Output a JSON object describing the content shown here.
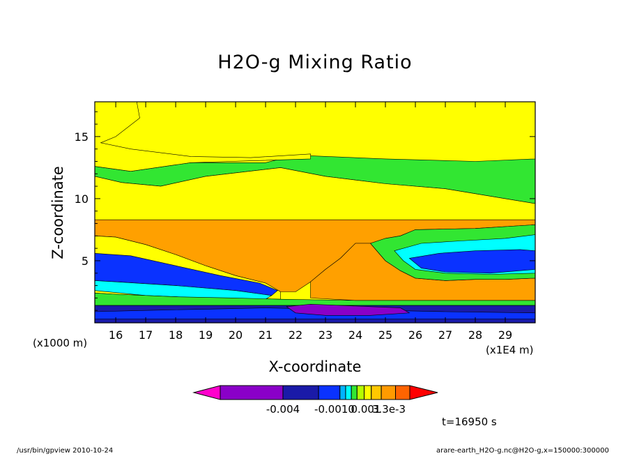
{
  "chart_data": {
    "type": "heatmap",
    "title": "H2O-g Mixing Ratio",
    "xlabel": "X-coordinate",
    "ylabel": "Z-coordinate",
    "x_unit_note": "(x1E4 m)",
    "y_unit_note": "(x1000 m)",
    "xlim": [
      15.3,
      30.0
    ],
    "ylim": [
      0.0,
      17.8
    ],
    "x_ticks": [
      16,
      17,
      18,
      19,
      20,
      21,
      22,
      23,
      24,
      25,
      26,
      27,
      28,
      29
    ],
    "y_ticks": [
      5,
      10,
      15
    ],
    "colorbar": {
      "labels": [
        "-0.004",
        "-0.0010",
        "0.001",
        "3.3e-3"
      ],
      "colors": [
        "#ff00cc",
        "#8a00c8",
        "#1a1aa8",
        "#0a32ff",
        "#00b4ff",
        "#00ffff",
        "#32e632",
        "#b4ff00",
        "#ffff00",
        "#ffc800",
        "#ff9a00",
        "#ff6400",
        "#ff0000"
      ]
    },
    "time_label": "t=16950 s",
    "regions": [
      {
        "name": "upper-green",
        "color": "#32e632",
        "polygon": [
          [
            15.3,
            17.8
          ],
          [
            30,
            17.8
          ],
          [
            30,
            9.6
          ],
          [
            29,
            10.0
          ],
          [
            27,
            10.8
          ],
          [
            25,
            11.2
          ],
          [
            23,
            11.8
          ],
          [
            21.5,
            12.5
          ],
          [
            19,
            11.8
          ],
          [
            17.5,
            11.0
          ],
          [
            16.2,
            11.3
          ],
          [
            15.3,
            11.8
          ],
          [
            15.3,
            12.6
          ],
          [
            16.5,
            12.2
          ],
          [
            18.5,
            12.9
          ],
          [
            21,
            12.9
          ],
          [
            22,
            13.5
          ],
          [
            25,
            13.2
          ],
          [
            28,
            13.0
          ],
          [
            30,
            13.2
          ],
          [
            30,
            17.8
          ]
        ]
      },
      {
        "name": "upper-left-yellow",
        "color": "#ffff00",
        "polygon": [
          [
            15.3,
            17.8
          ],
          [
            16.7,
            17.8
          ],
          [
            16.8,
            16.5
          ],
          [
            16.0,
            15.0
          ],
          [
            15.5,
            14.5
          ],
          [
            16.5,
            14.0
          ],
          [
            18.5,
            13.4
          ],
          [
            20.5,
            13.3
          ],
          [
            22.5,
            13.6
          ],
          [
            22.5,
            13.2
          ],
          [
            18.5,
            12.9
          ],
          [
            16.5,
            12.2
          ],
          [
            15.3,
            12.6
          ]
        ]
      },
      {
        "name": "mid-yellow",
        "color": "#ffff00",
        "polygon": [
          [
            15.3,
            11.8
          ],
          [
            16.2,
            11.3
          ],
          [
            17.5,
            11.0
          ],
          [
            19,
            11.8
          ],
          [
            21.5,
            12.5
          ],
          [
            23,
            11.8
          ],
          [
            25,
            11.2
          ],
          [
            27,
            10.8
          ],
          [
            29,
            10.0
          ],
          [
            30,
            9.6
          ],
          [
            30,
            7.9
          ],
          [
            28,
            7.6
          ],
          [
            26,
            7.5
          ],
          [
            24,
            7.4
          ],
          [
            22,
            7.4
          ],
          [
            20,
            7.6
          ],
          [
            18,
            7.9
          ],
          [
            16,
            8.2
          ],
          [
            15.3,
            8.3
          ]
        ]
      },
      {
        "name": "orange-band",
        "color": "#ffa000",
        "polygon": [
          [
            15.3,
            8.3
          ],
          [
            30,
            8.3
          ],
          [
            30,
            7.9
          ],
          [
            28,
            7.6
          ],
          [
            26,
            7.5
          ],
          [
            25.5,
            7.0
          ],
          [
            25,
            6.8
          ],
          [
            24.5,
            6.4
          ],
          [
            24,
            6.4
          ],
          [
            23.5,
            5.2
          ],
          [
            23,
            4.3
          ],
          [
            22.5,
            3.3
          ],
          [
            22,
            2.5
          ],
          [
            21.5,
            2.5
          ],
          [
            21,
            3.2
          ],
          [
            20,
            3.8
          ],
          [
            19,
            4.6
          ],
          [
            18,
            5.5
          ],
          [
            17,
            6.3
          ],
          [
            16,
            6.9
          ],
          [
            15.3,
            7.0
          ]
        ]
      },
      {
        "name": "yellow-lower",
        "color": "#ffff00",
        "polygon": [
          [
            15.3,
            7.0
          ],
          [
            16,
            6.9
          ],
          [
            17,
            6.3
          ],
          [
            18,
            5.5
          ],
          [
            19,
            4.6
          ],
          [
            20,
            3.8
          ],
          [
            21,
            3.2
          ],
          [
            21.5,
            2.5
          ],
          [
            21.5,
            1.9
          ],
          [
            20,
            2.0
          ],
          [
            18,
            2.1
          ],
          [
            16,
            2.3
          ],
          [
            15.3,
            2.4
          ]
        ]
      },
      {
        "name": "blue-lower-left",
        "color": "#0a32ff",
        "polygon": [
          [
            15.3,
            5.6
          ],
          [
            16.5,
            5.4
          ],
          [
            18,
            4.6
          ],
          [
            19.5,
            3.8
          ],
          [
            20.8,
            3.2
          ],
          [
            21.4,
            2.6
          ],
          [
            21.2,
            2.2
          ],
          [
            20,
            2.6
          ],
          [
            18,
            3.0
          ],
          [
            16,
            3.3
          ],
          [
            15.3,
            3.4
          ]
        ]
      },
      {
        "name": "cyan-lower-left",
        "color": "#00ffff",
        "polygon": [
          [
            15.3,
            3.4
          ],
          [
            16,
            3.3
          ],
          [
            18,
            3.0
          ],
          [
            20,
            2.6
          ],
          [
            21.2,
            2.2
          ],
          [
            21,
            1.9
          ],
          [
            19,
            2.0
          ],
          [
            17,
            2.2
          ],
          [
            15.3,
            2.6
          ]
        ]
      },
      {
        "name": "right-orange-wedge",
        "color": "#ffa000",
        "polygon": [
          [
            22.5,
            3.3
          ],
          [
            23,
            4.3
          ],
          [
            23.5,
            5.2
          ],
          [
            24,
            6.4
          ],
          [
            24.5,
            6.4
          ],
          [
            25,
            5.0
          ],
          [
            25.5,
            4.2
          ],
          [
            26,
            3.6
          ],
          [
            27,
            3.4
          ],
          [
            28,
            3.5
          ],
          [
            29,
            3.5
          ],
          [
            30,
            3.6
          ],
          [
            30,
            1.8
          ],
          [
            28,
            1.8
          ],
          [
            26,
            1.8
          ],
          [
            24,
            1.8
          ],
          [
            22.5,
            2.0
          ]
        ]
      },
      {
        "name": "right-green-cyan",
        "color": "#32e632",
        "polygon": [
          [
            24.5,
            6.4
          ],
          [
            25,
            6.8
          ],
          [
            25.5,
            7.0
          ],
          [
            26,
            7.5
          ],
          [
            28,
            7.6
          ],
          [
            30,
            7.9
          ],
          [
            30,
            3.6
          ],
          [
            29,
            3.5
          ],
          [
            28,
            3.5
          ],
          [
            27,
            3.4
          ],
          [
            26,
            3.6
          ],
          [
            25.5,
            4.2
          ],
          [
            25,
            5.0
          ]
        ]
      },
      {
        "name": "right-cyan",
        "color": "#00ffff",
        "polygon": [
          [
            25.3,
            5.8
          ],
          [
            26.2,
            6.4
          ],
          [
            27.5,
            6.6
          ],
          [
            29,
            6.8
          ],
          [
            30,
            7.1
          ],
          [
            30,
            4.0
          ],
          [
            28.5,
            3.9
          ],
          [
            27,
            4.0
          ],
          [
            26,
            4.3
          ],
          [
            25.6,
            5.0
          ]
        ]
      },
      {
        "name": "right-blue",
        "color": "#0a32ff",
        "polygon": [
          [
            25.8,
            5.2
          ],
          [
            26.8,
            5.6
          ],
          [
            28,
            5.8
          ],
          [
            29.5,
            5.9
          ],
          [
            30,
            5.8
          ],
          [
            30,
            4.3
          ],
          [
            28.5,
            4.0
          ],
          [
            27,
            4.1
          ],
          [
            26.2,
            4.4
          ]
        ]
      },
      {
        "name": "bottom-green",
        "color": "#32e632",
        "polygon": [
          [
            15.3,
            2.4
          ],
          [
            16,
            2.3
          ],
          [
            18,
            2.1
          ],
          [
            20,
            2.0
          ],
          [
            21.5,
            1.9
          ],
          [
            24,
            1.8
          ],
          [
            28,
            1.8
          ],
          [
            30,
            1.8
          ],
          [
            30,
            1.4
          ],
          [
            15.3,
            1.4
          ]
        ]
      },
      {
        "name": "bottom-navy",
        "color": "#1a1aa8",
        "polygon": [
          [
            15.3,
            1.4
          ],
          [
            30,
            1.4
          ],
          [
            30,
            0.0
          ],
          [
            15.3,
            0.0
          ]
        ]
      },
      {
        "name": "bottom-blue-streak",
        "color": "#0a32ff",
        "polygon": [
          [
            15.3,
            0.9
          ],
          [
            17,
            1.0
          ],
          [
            19,
            1.1
          ],
          [
            21,
            1.2
          ],
          [
            23,
            1.1
          ],
          [
            25,
            1.0
          ],
          [
            27,
            0.9
          ],
          [
            30,
            0.8
          ],
          [
            30,
            0.3
          ],
          [
            15.3,
            0.3
          ]
        ]
      },
      {
        "name": "bottom-purple",
        "color": "#8a00c8",
        "polygon": [
          [
            21.7,
            1.3
          ],
          [
            22.5,
            1.5
          ],
          [
            23.5,
            1.4
          ],
          [
            24.5,
            1.3
          ],
          [
            25.5,
            1.2
          ],
          [
            25.8,
            0.8
          ],
          [
            24.5,
            0.6
          ],
          [
            23,
            0.6
          ],
          [
            22,
            0.8
          ]
        ]
      }
    ]
  },
  "footer": {
    "left": "/usr/bin/gpview   2010-10-24",
    "right": "arare-earth_H2O-g.nc@H2O-g,x=150000:300000"
  }
}
